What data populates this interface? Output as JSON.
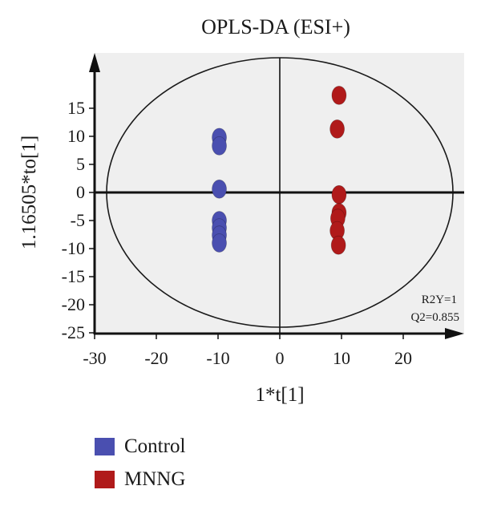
{
  "chart_data": {
    "type": "scatter",
    "title": "OPLS-DA (ESI+)",
    "xlabel": "1*t[1]",
    "ylabel": "1.16505*to[1]",
    "xlim": [
      -30,
      29
    ],
    "ylim": [
      -25,
      25
    ],
    "xticks": [
      -30,
      -20,
      -10,
      0,
      10,
      20
    ],
    "yticks": [
      15,
      10,
      5,
      0,
      -5,
      -10,
      -15,
      -20,
      -25
    ],
    "annotations": [
      "R2Y=1",
      "Q2=0.855"
    ],
    "legend_position": "bottom-left",
    "background": "#efefef",
    "series": [
      {
        "name": "Control",
        "color": "#4a4fb0",
        "points": [
          {
            "x": -9.8,
            "y": 9.8
          },
          {
            "x": -9.8,
            "y": 8.3
          },
          {
            "x": -9.8,
            "y": 0.6
          },
          {
            "x": -9.8,
            "y": -5.0
          },
          {
            "x": -9.8,
            "y": -6.3
          },
          {
            "x": -9.8,
            "y": -7.6
          },
          {
            "x": -9.8,
            "y": -9.0
          }
        ]
      },
      {
        "name": "MNNG",
        "color": "#b01a1a",
        "points": [
          {
            "x": 9.6,
            "y": 17.3
          },
          {
            "x": 9.3,
            "y": 11.3
          },
          {
            "x": 9.6,
            "y": -0.4
          },
          {
            "x": 9.6,
            "y": -3.6
          },
          {
            "x": 9.4,
            "y": -4.6
          },
          {
            "x": 9.3,
            "y": -6.8
          },
          {
            "x": 9.5,
            "y": -9.4
          }
        ]
      }
    ]
  }
}
